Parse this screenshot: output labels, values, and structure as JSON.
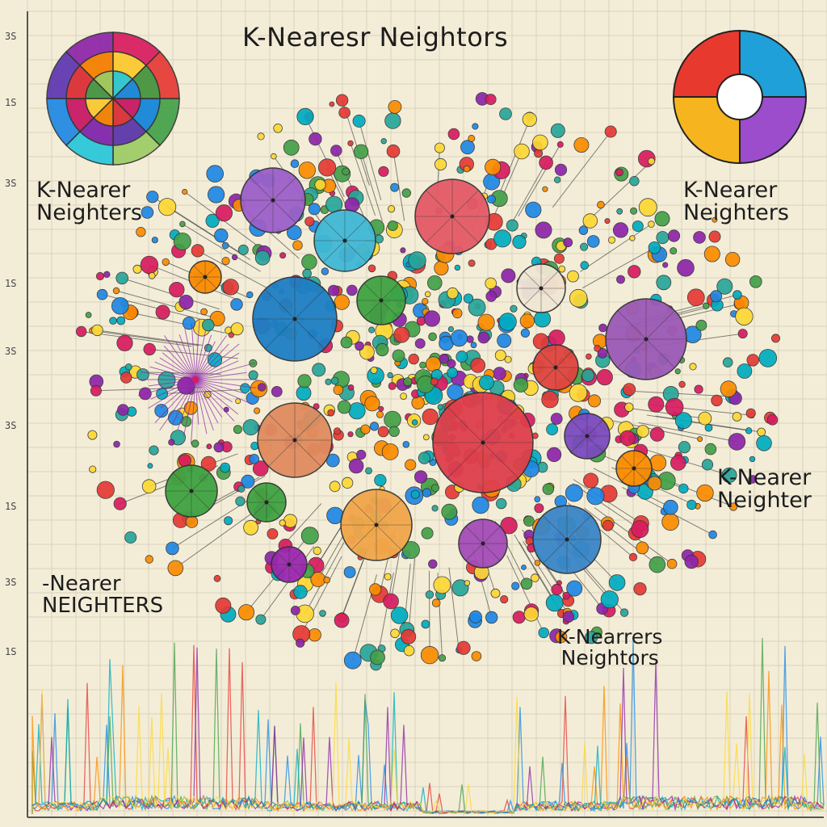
{
  "title": "K-Nearesr Neightors",
  "labels": {
    "top_left": {
      "line1": "K-Nearer",
      "line2": "Neighters"
    },
    "top_right": {
      "line1": "K-Nearer",
      "line2": "Neighters"
    },
    "mid_right": {
      "line1": "K-Nearer",
      "line2": "Neighter"
    },
    "mid_left": {
      "line1": "-Nearer",
      "line2": "NEIGHTERS"
    },
    "bottom_right": {
      "line1": "K-Nearrers",
      "line2": "Neightors"
    }
  },
  "axis_ticks": [
    "3S",
    "1S",
    "3S",
    "1S",
    "3S",
    "3S",
    "1S",
    "3S",
    "1S"
  ],
  "colors": {
    "paper": "#f3edd8",
    "grid": "#d8d2bd",
    "palette": [
      "#e53935",
      "#1e88e5",
      "#43a047",
      "#fb8c00",
      "#8e24aa",
      "#00acc1",
      "#fdd835",
      "#d81b60",
      "#26a69a"
    ]
  },
  "icons": {
    "top_left_wheel": "color-wheel-icon",
    "top_right_wheel": "quadrant-wheel-icon"
  }
}
